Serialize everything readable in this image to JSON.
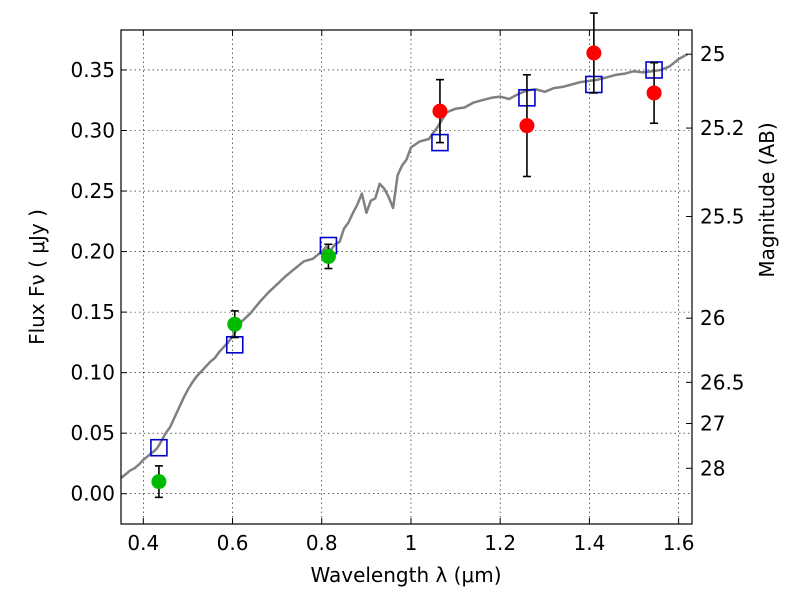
{
  "chart_data": {
    "type": "scatter",
    "xlabel": "Wavelength  λ (μm)",
    "ylabel_left": "Flux  Fν  ( μJy )",
    "ylabel_right": "Magnitude (AB)",
    "xlim": [
      0.35,
      1.63
    ],
    "ylim": [
      -0.025,
      0.383
    ],
    "grid": true,
    "x_ticks": [
      0.4,
      0.6,
      0.8,
      1.0,
      1.2,
      1.4,
      1.6
    ],
    "x_tick_labels": [
      "0.4",
      "0.6",
      "0.8",
      "1",
      "1.2",
      "1.4",
      "1.6"
    ],
    "y_ticks": [
      0.0,
      0.05,
      0.1,
      0.15,
      0.2,
      0.25,
      0.3,
      0.35
    ],
    "y_tick_labels": [
      "0.00",
      "0.05",
      "0.10",
      "0.15",
      "0.20",
      "0.25",
      "0.30",
      "0.35"
    ],
    "right_ticks": [
      {
        "label": "25",
        "flux": 0.363
      },
      {
        "label": "25.2",
        "flux": 0.302
      },
      {
        "label": "25.5",
        "flux": 0.229
      },
      {
        "label": "26",
        "flux": 0.145
      },
      {
        "label": "26.5",
        "flux": 0.092
      },
      {
        "label": "27",
        "flux": 0.058
      },
      {
        "label": "28",
        "flux": 0.021
      }
    ],
    "model_sed": {
      "name": "model spectrum",
      "color": "#808080",
      "x": [
        0.35,
        0.36,
        0.37,
        0.38,
        0.39,
        0.4,
        0.41,
        0.42,
        0.43,
        0.44,
        0.45,
        0.46,
        0.47,
        0.48,
        0.49,
        0.5,
        0.51,
        0.52,
        0.53,
        0.54,
        0.55,
        0.56,
        0.57,
        0.58,
        0.59,
        0.6,
        0.62,
        0.64,
        0.66,
        0.68,
        0.7,
        0.72,
        0.74,
        0.76,
        0.78,
        0.8,
        0.81,
        0.82,
        0.83,
        0.84,
        0.85,
        0.86,
        0.87,
        0.88,
        0.89,
        0.9,
        0.91,
        0.92,
        0.93,
        0.94,
        0.95,
        0.96,
        0.97,
        0.98,
        0.99,
        1.0,
        1.02,
        1.04,
        1.06,
        1.08,
        1.1,
        1.12,
        1.14,
        1.16,
        1.18,
        1.2,
        1.22,
        1.24,
        1.26,
        1.28,
        1.3,
        1.32,
        1.34,
        1.36,
        1.38,
        1.4,
        1.42,
        1.44,
        1.46,
        1.48,
        1.5,
        1.52,
        1.54,
        1.56,
        1.58,
        1.6,
        1.62
      ],
      "y": [
        0.013,
        0.016,
        0.019,
        0.021,
        0.024,
        0.028,
        0.031,
        0.034,
        0.037,
        0.043,
        0.05,
        0.055,
        0.063,
        0.071,
        0.079,
        0.086,
        0.092,
        0.097,
        0.101,
        0.105,
        0.109,
        0.112,
        0.117,
        0.121,
        0.125,
        0.13,
        0.142,
        0.149,
        0.158,
        0.166,
        0.173,
        0.18,
        0.186,
        0.192,
        0.194,
        0.2,
        0.204,
        0.201,
        0.206,
        0.208,
        0.219,
        0.224,
        0.232,
        0.239,
        0.248,
        0.232,
        0.242,
        0.244,
        0.256,
        0.252,
        0.245,
        0.236,
        0.263,
        0.271,
        0.276,
        0.286,
        0.291,
        0.293,
        0.303,
        0.315,
        0.318,
        0.319,
        0.323,
        0.325,
        0.327,
        0.328,
        0.326,
        0.33,
        0.333,
        0.334,
        0.332,
        0.335,
        0.336,
        0.338,
        0.34,
        0.341,
        0.342,
        0.344,
        0.346,
        0.347,
        0.349,
        0.348,
        0.349,
        0.35,
        0.353,
        0.359,
        0.363
      ]
    },
    "model_points": {
      "name": "model photometry",
      "marker": "open-square",
      "color": "#0000cc",
      "x": [
        0.435,
        0.605,
        0.815,
        1.065,
        1.26,
        1.41,
        1.545
      ],
      "y": [
        0.038,
        0.123,
        0.205,
        0.29,
        0.327,
        0.338,
        0.35
      ]
    },
    "observed": [
      {
        "name": "observed (optical)",
        "color": "#00bb00",
        "x": [
          0.435,
          0.605,
          0.815
        ],
        "y": [
          0.01,
          0.14,
          0.196
        ],
        "err": [
          0.013,
          0.011,
          0.01
        ]
      },
      {
        "name": "observed (near-IR)",
        "color": "#ff0000",
        "x": [
          1.065,
          1.26,
          1.41,
          1.545
        ],
        "y": [
          0.316,
          0.304,
          0.364,
          0.331
        ],
        "err": [
          0.026,
          0.042,
          0.033,
          0.025
        ]
      }
    ]
  }
}
